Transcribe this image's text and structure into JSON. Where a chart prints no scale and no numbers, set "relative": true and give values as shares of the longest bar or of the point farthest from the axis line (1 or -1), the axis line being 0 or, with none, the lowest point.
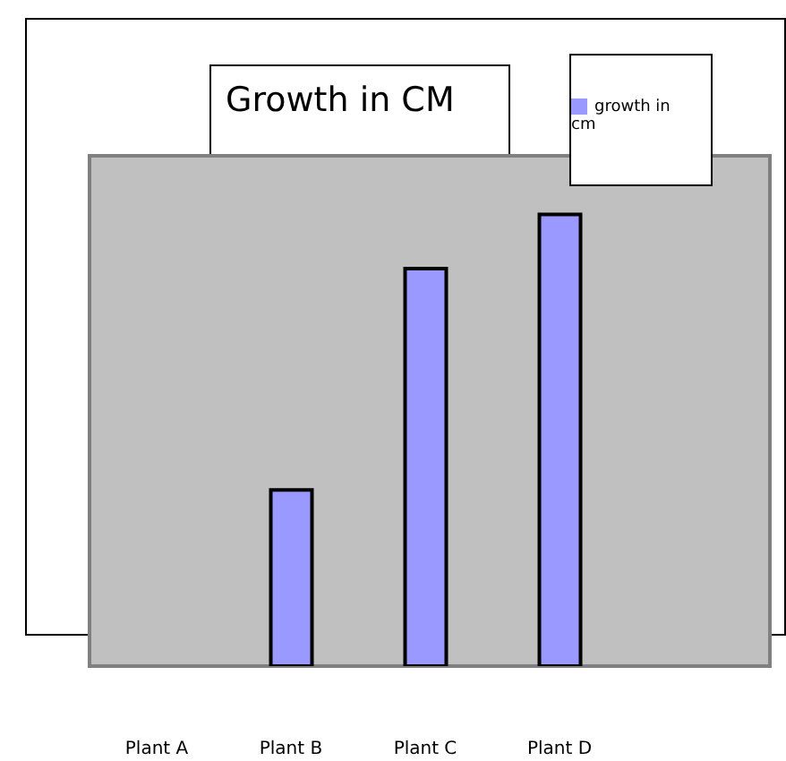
{
  "chart_data": {
    "type": "bar",
    "title": "Growth in CM",
    "categories": [
      "Plant A",
      "Plant B",
      "Plant C",
      "Plant D"
    ],
    "series": [
      {
        "name": "growth in cm",
        "color": "#9999ff",
        "values": [
          0,
          0.39,
          0.88,
          1
        ]
      }
    ],
    "relative": true,
    "legend": "top right"
  }
}
